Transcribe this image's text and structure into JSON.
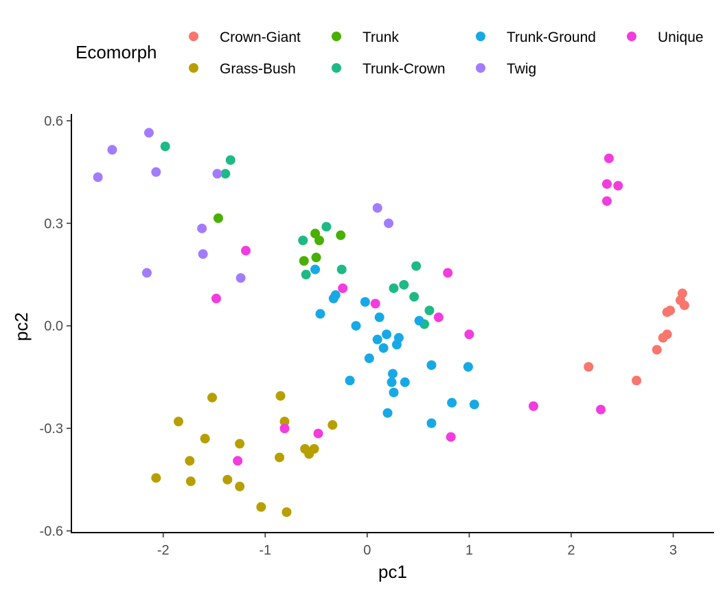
{
  "chart_data": {
    "type": "scatter",
    "xlabel": "pc1",
    "ylabel": "pc2",
    "xlim": [
      -2.9,
      3.4
    ],
    "ylim": [
      -0.605,
      0.62
    ],
    "x_ticks": [
      {
        "value": -2,
        "label": "-2"
      },
      {
        "value": -1,
        "label": "-1"
      },
      {
        "value": 0,
        "label": "0"
      },
      {
        "value": 1,
        "label": "1"
      },
      {
        "value": 2,
        "label": "2"
      },
      {
        "value": 3,
        "label": "3"
      }
    ],
    "y_ticks": [
      {
        "value": 0.6,
        "label": "0.6"
      },
      {
        "value": 0.3,
        "label": "0.3"
      },
      {
        "value": 0.0,
        "label": "0.0"
      },
      {
        "value": -0.3,
        "label": "-0.3"
      },
      {
        "value": -0.6,
        "label": "-0.6"
      }
    ],
    "grid": false,
    "legend": {
      "title": "Ecomorph",
      "placement": "top"
    },
    "series": [
      {
        "name": "Crown-Giant",
        "color": "#F8766D",
        "points": [
          [
            2.17,
            -0.12
          ],
          [
            2.64,
            -0.16
          ],
          [
            2.84,
            -0.07
          ],
          [
            2.9,
            -0.035
          ],
          [
            2.94,
            -0.025
          ],
          [
            2.94,
            0.04
          ],
          [
            2.97,
            0.045
          ],
          [
            3.07,
            0.075
          ],
          [
            3.09,
            0.095
          ],
          [
            3.11,
            0.06
          ]
        ]
      },
      {
        "name": "Grass-Bush",
        "color": "#B79F00",
        "points": [
          [
            -2.07,
            -0.445
          ],
          [
            -1.85,
            -0.28
          ],
          [
            -1.74,
            -0.395
          ],
          [
            -1.73,
            -0.455
          ],
          [
            -1.59,
            -0.33
          ],
          [
            -1.52,
            -0.21
          ],
          [
            -1.37,
            -0.45
          ],
          [
            -1.25,
            -0.345
          ],
          [
            -1.25,
            -0.47
          ],
          [
            -1.04,
            -0.53
          ],
          [
            -0.86,
            -0.385
          ],
          [
            -0.85,
            -0.205
          ],
          [
            -0.81,
            -0.28
          ],
          [
            -0.79,
            -0.545
          ],
          [
            -0.61,
            -0.36
          ],
          [
            -0.57,
            -0.375
          ],
          [
            -0.52,
            -0.36
          ],
          [
            -0.34,
            -0.29
          ]
        ]
      },
      {
        "name": "Trunk",
        "color": "#49B000",
        "points": [
          [
            -1.46,
            0.315
          ],
          [
            -0.62,
            0.19
          ],
          [
            -0.51,
            0.27
          ],
          [
            -0.5,
            0.2
          ],
          [
            -0.47,
            0.25
          ],
          [
            -0.26,
            0.265
          ]
        ]
      },
      {
        "name": "Trunk-Crown",
        "color": "#1DBA84",
        "points": [
          [
            -1.98,
            0.525
          ],
          [
            -1.34,
            0.485
          ],
          [
            -1.39,
            0.445
          ],
          [
            -0.63,
            0.25
          ],
          [
            -0.6,
            0.15
          ],
          [
            -0.4,
            0.29
          ],
          [
            -0.25,
            0.165
          ],
          [
            0.26,
            0.11
          ],
          [
            0.36,
            0.12
          ],
          [
            0.46,
            0.085
          ],
          [
            0.48,
            0.175
          ],
          [
            0.56,
            0.005
          ],
          [
            0.61,
            0.045
          ]
        ]
      },
      {
        "name": "Trunk-Ground",
        "color": "#17A9E6",
        "points": [
          [
            -0.51,
            0.165
          ],
          [
            -0.46,
            0.035
          ],
          [
            -0.33,
            0.08
          ],
          [
            -0.31,
            0.09
          ],
          [
            -0.17,
            -0.16
          ],
          [
            -0.11,
            0.0
          ],
          [
            -0.02,
            0.07
          ],
          [
            0.02,
            -0.095
          ],
          [
            0.1,
            -0.04
          ],
          [
            0.12,
            0.025
          ],
          [
            0.16,
            -0.065
          ],
          [
            0.19,
            -0.025
          ],
          [
            0.2,
            -0.255
          ],
          [
            0.24,
            -0.165
          ],
          [
            0.25,
            -0.14
          ],
          [
            0.26,
            -0.195
          ],
          [
            0.29,
            -0.055
          ],
          [
            0.31,
            -0.035
          ],
          [
            0.37,
            -0.165
          ],
          [
            0.51,
            0.015
          ],
          [
            0.63,
            -0.115
          ],
          [
            0.63,
            -0.285
          ],
          [
            0.83,
            -0.225
          ],
          [
            0.99,
            -0.12
          ],
          [
            1.05,
            -0.23
          ]
        ]
      },
      {
        "name": "Twig",
        "color": "#A27CFF",
        "points": [
          [
            -2.64,
            0.435
          ],
          [
            -2.5,
            0.515
          ],
          [
            -2.16,
            0.155
          ],
          [
            -2.14,
            0.565
          ],
          [
            -2.07,
            0.45
          ],
          [
            -1.62,
            0.285
          ],
          [
            -1.61,
            0.21
          ],
          [
            -1.47,
            0.445
          ],
          [
            -1.24,
            0.14
          ],
          [
            0.1,
            0.345
          ],
          [
            0.21,
            0.3
          ]
        ]
      },
      {
        "name": "Unique",
        "color": "#F33CDE",
        "points": [
          [
            -1.48,
            0.08
          ],
          [
            -1.19,
            0.22
          ],
          [
            -1.27,
            -0.395
          ],
          [
            -0.81,
            -0.3
          ],
          [
            -0.48,
            -0.315
          ],
          [
            -0.24,
            0.11
          ],
          [
            0.08,
            0.065
          ],
          [
            0.79,
            0.155
          ],
          [
            0.7,
            0.025
          ],
          [
            1.0,
            -0.025
          ],
          [
            0.82,
            -0.325
          ],
          [
            1.63,
            -0.235
          ],
          [
            2.29,
            -0.245
          ],
          [
            2.35,
            0.365
          ],
          [
            2.35,
            0.415
          ],
          [
            2.37,
            0.49
          ],
          [
            2.46,
            0.41
          ]
        ]
      }
    ]
  }
}
